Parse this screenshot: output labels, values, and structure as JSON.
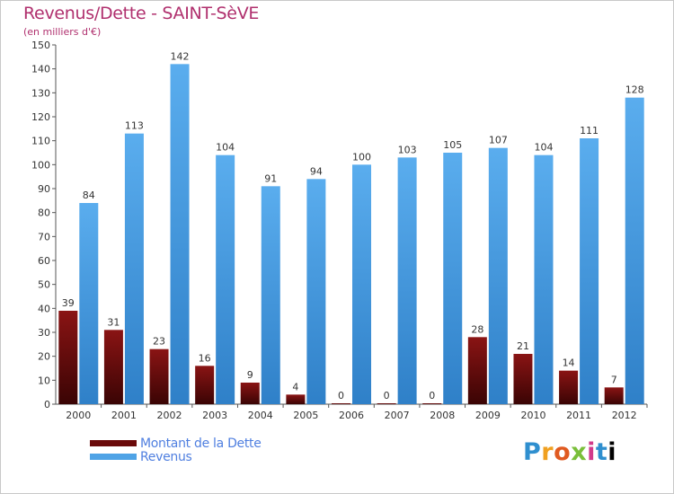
{
  "header": {
    "title": "Revenus/Dette - SAINT-SèVE",
    "subtitle": "(en milliers d'€)"
  },
  "chart_data": {
    "type": "bar",
    "title": "Revenus/Dette - SAINT-SèVE",
    "ylabel": "(en milliers d'€)",
    "categories": [
      "2000",
      "2001",
      "2002",
      "2003",
      "2004",
      "2005",
      "2006",
      "2007",
      "2008",
      "2009",
      "2010",
      "2011",
      "2012"
    ],
    "series": [
      {
        "name": "Montant de la Dette",
        "color": "#7a1010",
        "values": [
          39,
          31,
          23,
          16,
          9,
          4,
          0,
          0,
          0,
          28,
          21,
          14,
          7
        ]
      },
      {
        "name": "Revenus",
        "color": "#4fa3e6",
        "values": [
          84,
          113,
          142,
          104,
          91,
          94,
          100,
          103,
          105,
          107,
          104,
          111,
          128
        ]
      }
    ],
    "ylim": [
      0,
      150
    ],
    "yticks": [
      "0",
      "10",
      "20",
      "30",
      "40",
      "50",
      "60",
      "70",
      "80",
      "90",
      "100",
      "110",
      "120",
      "130",
      "140",
      "150"
    ],
    "grid": false,
    "legend": "bottom-left"
  },
  "legend": {
    "items": [
      {
        "label": "Montant de la Dette",
        "color": "#6a0a0a"
      },
      {
        "label": "Revenus",
        "color": "#4fa3e6"
      }
    ]
  },
  "logo": {
    "letters": [
      "P",
      "r",
      "o",
      "x",
      "i",
      "t",
      "i"
    ]
  }
}
